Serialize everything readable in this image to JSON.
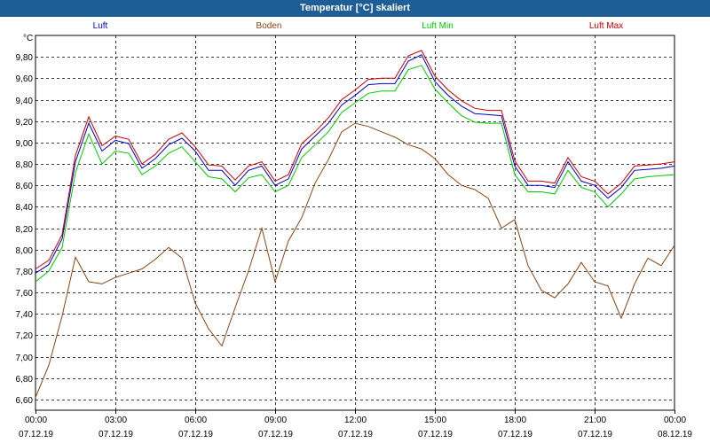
{
  "chart_data": {
    "type": "line",
    "title": "Temperatur [°C] skaliert",
    "ylabel": "°C",
    "ylim": [
      6.5,
      10.0
    ],
    "xlim": [
      "2019-12-07T00:00",
      "2019-12-08T00:00"
    ],
    "grid": true,
    "legend_position": "top",
    "y_ticks": [
      "6,60",
      "6,80",
      "7,00",
      "7,20",
      "7,40",
      "7,60",
      "7,80",
      "8,00",
      "8,20",
      "8,40",
      "8,60",
      "8,80",
      "9,00",
      "9,20",
      "9,40",
      "9,60",
      "9,80"
    ],
    "y_tick_values": [
      6.6,
      6.8,
      7.0,
      7.2,
      7.4,
      7.6,
      7.8,
      8.0,
      8.2,
      8.4,
      8.6,
      8.8,
      9.0,
      9.2,
      9.4,
      9.6,
      9.8
    ],
    "x_ticks": [
      {
        "time": "00:00",
        "date": "07.12.19"
      },
      {
        "time": "03:00",
        "date": "07.12.19"
      },
      {
        "time": "06:00",
        "date": "07.12.19"
      },
      {
        "time": "09:00",
        "date": "07.12.19"
      },
      {
        "time": "12:00",
        "date": "07.12.19"
      },
      {
        "time": "15:00",
        "date": "07.12.19"
      },
      {
        "time": "18:00",
        "date": "07.12.19"
      },
      {
        "time": "21:00",
        "date": "07.12.19"
      },
      {
        "time": "00:00",
        "date": "08.12.19"
      }
    ],
    "x": [
      "00:00",
      "00:30",
      "01:00",
      "01:30",
      "02:00",
      "02:30",
      "03:00",
      "03:30",
      "04:00",
      "04:30",
      "05:00",
      "05:30",
      "06:00",
      "06:30",
      "07:00",
      "07:30",
      "08:00",
      "08:30",
      "09:00",
      "09:30",
      "10:00",
      "10:30",
      "11:00",
      "11:30",
      "12:00",
      "12:30",
      "13:00",
      "13:30",
      "14:00",
      "14:30",
      "15:00",
      "15:30",
      "16:00",
      "16:30",
      "17:00",
      "17:30",
      "18:00",
      "18:30",
      "19:00",
      "19:30",
      "20:00",
      "20:30",
      "21:00",
      "21:30",
      "22:00",
      "22:30",
      "23:00",
      "23:30",
      "00:00"
    ],
    "series": [
      {
        "name": "Luft",
        "color": "#0000c8",
        "values": [
          7.78,
          7.86,
          8.1,
          8.82,
          9.18,
          8.92,
          9.02,
          8.99,
          8.76,
          8.85,
          8.98,
          9.04,
          8.92,
          8.74,
          8.74,
          8.6,
          8.74,
          8.78,
          8.6,
          8.66,
          8.94,
          9.06,
          9.18,
          9.35,
          9.44,
          9.54,
          9.55,
          9.55,
          9.76,
          9.82,
          9.57,
          9.44,
          9.34,
          9.27,
          9.26,
          9.25,
          8.78,
          8.6,
          8.6,
          8.58,
          8.82,
          8.64,
          8.6,
          8.48,
          8.58,
          8.74,
          8.75,
          8.76,
          8.78
        ]
      },
      {
        "name": "Boden",
        "color": "#8b4513",
        "values": [
          6.62,
          6.92,
          7.38,
          7.93,
          7.7,
          7.68,
          7.74,
          7.78,
          7.82,
          7.91,
          8.02,
          7.92,
          7.5,
          7.26,
          7.1,
          7.46,
          7.8,
          8.2,
          7.7,
          8.08,
          8.3,
          8.62,
          8.84,
          9.1,
          9.18,
          9.15,
          9.1,
          9.05,
          8.98,
          8.94,
          8.85,
          8.7,
          8.6,
          8.56,
          8.48,
          8.2,
          8.28,
          7.85,
          7.62,
          7.55,
          7.68,
          7.88,
          7.7,
          7.66,
          7.36,
          7.68,
          7.92,
          7.85,
          8.04
        ]
      },
      {
        "name": "Luft Min",
        "color": "#00c800",
        "values": [
          7.7,
          7.8,
          8.02,
          8.72,
          9.08,
          8.8,
          8.92,
          8.9,
          8.7,
          8.78,
          8.9,
          8.96,
          8.82,
          8.68,
          8.66,
          8.54,
          8.67,
          8.7,
          8.54,
          8.6,
          8.86,
          8.98,
          9.1,
          9.28,
          9.37,
          9.46,
          9.48,
          9.48,
          9.68,
          9.72,
          9.5,
          9.37,
          9.25,
          9.19,
          9.18,
          9.18,
          8.7,
          8.54,
          8.54,
          8.52,
          8.74,
          8.58,
          8.54,
          8.4,
          8.52,
          8.66,
          8.68,
          8.69,
          8.7
        ]
      },
      {
        "name": "Luft Max",
        "color": "#c80000",
        "values": [
          7.82,
          7.9,
          8.14,
          8.88,
          9.24,
          8.97,
          9.06,
          9.03,
          8.8,
          8.89,
          9.03,
          9.09,
          8.96,
          8.79,
          8.78,
          8.65,
          8.78,
          8.82,
          8.64,
          8.7,
          8.99,
          9.1,
          9.23,
          9.4,
          9.49,
          9.59,
          9.6,
          9.6,
          9.81,
          9.86,
          9.62,
          9.49,
          9.39,
          9.32,
          9.3,
          9.3,
          8.83,
          8.64,
          8.64,
          8.62,
          8.86,
          8.68,
          8.64,
          8.52,
          8.62,
          8.78,
          8.79,
          8.8,
          8.82
        ]
      }
    ]
  }
}
